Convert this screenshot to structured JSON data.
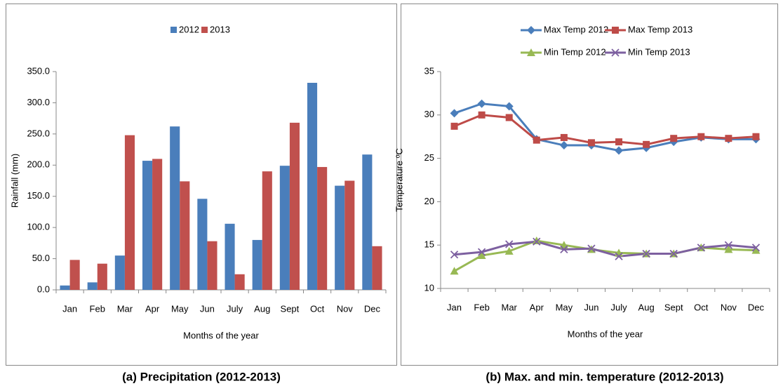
{
  "chart_data": [
    {
      "type": "bar",
      "caption": "(a) Precipitation (2012-2013)",
      "x_label": "Months of the year",
      "y_label": "Rainfall (mm)",
      "categories": [
        "Jan",
        "Feb",
        "Mar",
        "Apr",
        "May",
        "Jun",
        "July",
        "Aug",
        "Sept",
        "Oct",
        "Nov",
        "Dec"
      ],
      "series": [
        {
          "name": "2012",
          "color": "#4a7ebb",
          "values": [
            7,
            12,
            55,
            207,
            262,
            146,
            106,
            80,
            199,
            332,
            167,
            217
          ]
        },
        {
          "name": "2013",
          "color": "#c0504d",
          "values": [
            48,
            42,
            248,
            210,
            174,
            78,
            25,
            190,
            268,
            197,
            175,
            70
          ]
        }
      ],
      "ylim": [
        0,
        350
      ],
      "yticks": [
        {
          "value": 0,
          "label": "0.0"
        },
        {
          "value": 50,
          "label": "50.0"
        },
        {
          "value": 100,
          "label": "100.0"
        },
        {
          "value": 150,
          "label": "150.0"
        },
        {
          "value": 200,
          "label": "200.0"
        },
        {
          "value": 250,
          "label": "250.0"
        },
        {
          "value": 300,
          "label": "300.0"
        },
        {
          "value": 350,
          "label": "350.0"
        }
      ],
      "legend": "top",
      "grid": false
    },
    {
      "type": "line",
      "caption": "(b) Max. and min. temperature (2012-2013)",
      "x_label": "Months of the year",
      "y_label": "Temperature ºC",
      "categories": [
        "Jan",
        "Feb",
        "Mar",
        "Apr",
        "May",
        "Jun",
        "July",
        "Aug",
        "Sept",
        "Oct",
        "Nov",
        "Dec"
      ],
      "series": [
        {
          "name": "Max Temp 2012",
          "color": "#4a7ebb",
          "marker": "diamond",
          "values": [
            30.2,
            31.3,
            31.0,
            27.2,
            26.5,
            26.5,
            25.9,
            26.2,
            26.9,
            27.4,
            27.2,
            27.2
          ]
        },
        {
          "name": "Max Temp 2013",
          "color": "#be4b48",
          "marker": "square",
          "values": [
            28.7,
            30.0,
            29.7,
            27.1,
            27.4,
            26.8,
            26.9,
            26.6,
            27.3,
            27.5,
            27.3,
            27.5
          ]
        },
        {
          "name": "Min Temp 2012",
          "color": "#98b954",
          "marker": "triangle",
          "values": [
            12.0,
            13.8,
            14.3,
            15.5,
            15.0,
            14.5,
            14.1,
            14.0,
            14.0,
            14.7,
            14.5,
            14.4
          ]
        },
        {
          "name": "Min Temp 2013",
          "color": "#7d60a0",
          "marker": "x",
          "values": [
            13.9,
            14.2,
            15.1,
            15.4,
            14.5,
            14.6,
            13.7,
            14.0,
            14.0,
            14.7,
            15.0,
            14.7
          ]
        }
      ],
      "ylim": [
        10,
        35
      ],
      "yticks": [
        10,
        15,
        20,
        25,
        30,
        35
      ],
      "legend": "top",
      "grid": false
    }
  ]
}
